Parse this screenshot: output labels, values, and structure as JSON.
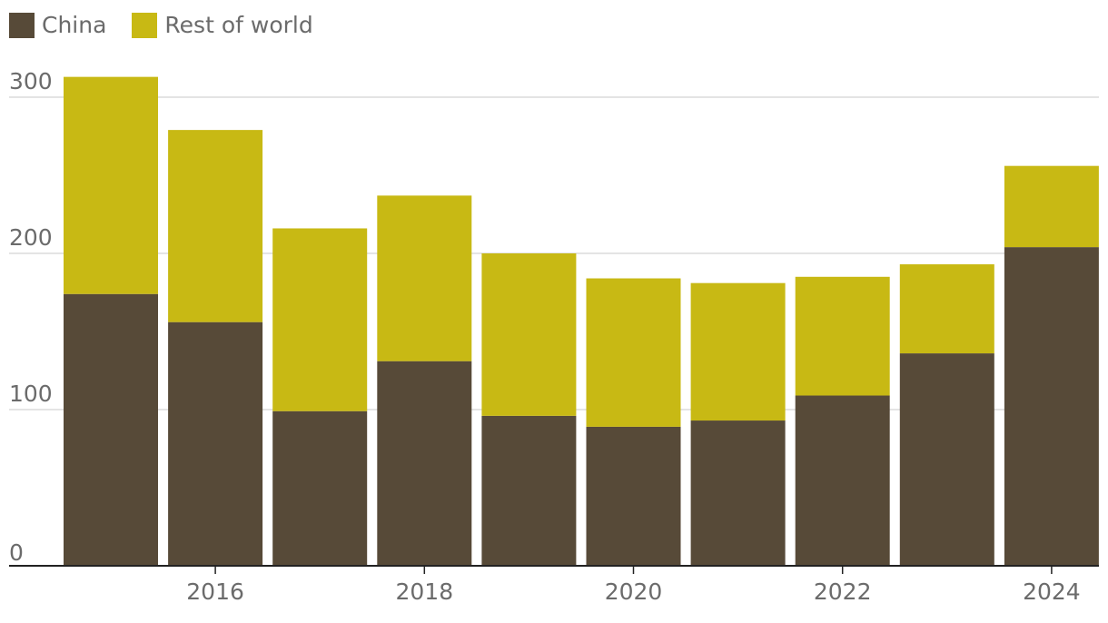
{
  "chart_data": {
    "type": "bar",
    "stacked": true,
    "title": "",
    "xlabel": "",
    "ylabel": "",
    "categories": [
      "2015",
      "2016",
      "2017",
      "2018",
      "2019",
      "2020",
      "2021",
      "2022",
      "2023",
      "2024"
    ],
    "x_tick_labels": [
      "2016",
      "2018",
      "2020",
      "2022",
      "2024"
    ],
    "y_ticks": [
      0,
      100,
      200,
      300
    ],
    "ylim": [
      0,
      300
    ],
    "grid": true,
    "legend_position": "top-left",
    "series": [
      {
        "name": "China",
        "color": "#574a38",
        "values": [
          174,
          156,
          99,
          131,
          96,
          89,
          93,
          109,
          136,
          204
        ]
      },
      {
        "name": "Rest of world",
        "color": "#c8b914",
        "values": [
          139,
          123,
          117,
          106,
          104,
          95,
          88,
          76,
          57,
          52
        ]
      }
    ]
  }
}
